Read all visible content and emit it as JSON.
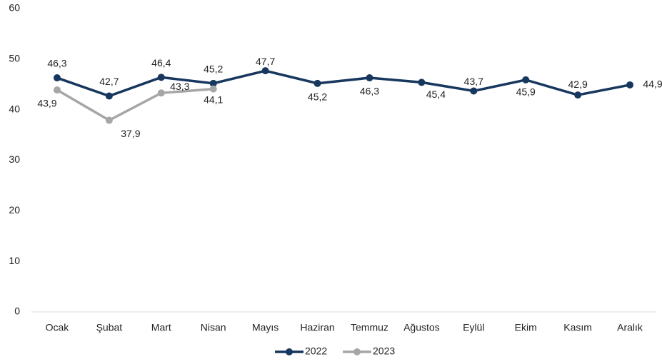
{
  "chart_data": {
    "type": "line",
    "categories": [
      "Ocak",
      "Şubat",
      "Mart",
      "Nisan",
      "Mayıs",
      "Haziran",
      "Temmuz",
      "Ağustos",
      "Eylül",
      "Ekim",
      "Kasım",
      "Aralık"
    ],
    "series": [
      {
        "name": "2022",
        "color": "#17375e",
        "values": [
          46.3,
          42.7,
          46.4,
          45.2,
          47.7,
          45.2,
          46.3,
          45.4,
          43.7,
          45.9,
          42.9,
          44.9
        ],
        "value_labels": [
          "46,3",
          "42,7",
          "46,4",
          "45,2",
          "47,7",
          "45,2",
          "46,3",
          "45,4",
          "43,7",
          "45,9",
          "42,9",
          "44,9"
        ]
      },
      {
        "name": "2023",
        "color": "#a6a6a6",
        "values": [
          43.9,
          37.9,
          43.3,
          44.1,
          null,
          null,
          null,
          null,
          null,
          null,
          null,
          null
        ],
        "value_labels": [
          "43,9",
          "37,9",
          "43,3",
          "44,1",
          null,
          null,
          null,
          null,
          null,
          null,
          null,
          null
        ]
      }
    ],
    "ylim": [
      0,
      60
    ],
    "yticks": [
      0,
      10,
      20,
      30,
      40,
      50,
      60
    ],
    "legend": "bottom"
  }
}
